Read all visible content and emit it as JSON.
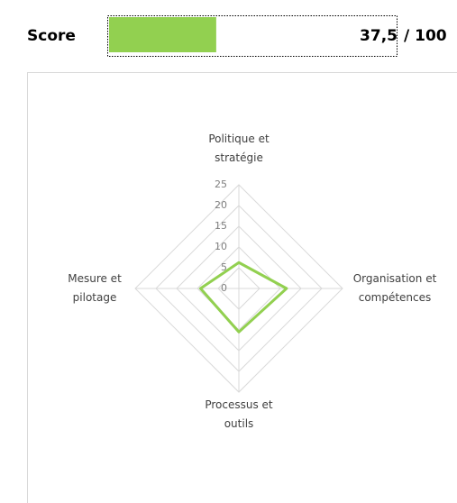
{
  "score": {
    "label": "Score",
    "value": 37.5,
    "value_label": "37,5",
    "max": 100,
    "max_label": "/ 100",
    "color": "#92d050"
  },
  "chart_data": {
    "type": "radar",
    "categories": [
      [
        "Politique et",
        "stratégie"
      ],
      [
        "Organisation et",
        "compétences"
      ],
      [
        "Processus et",
        "outils"
      ],
      [
        "Mesure et",
        "pilotage"
      ]
    ],
    "values": [
      6.25,
      11.5,
      10.5,
      9.25
    ],
    "color": "#92d050",
    "ylim": [
      0,
      25
    ],
    "yticks": [
      0,
      5,
      10,
      15,
      20,
      25
    ],
    "grid": true
  }
}
